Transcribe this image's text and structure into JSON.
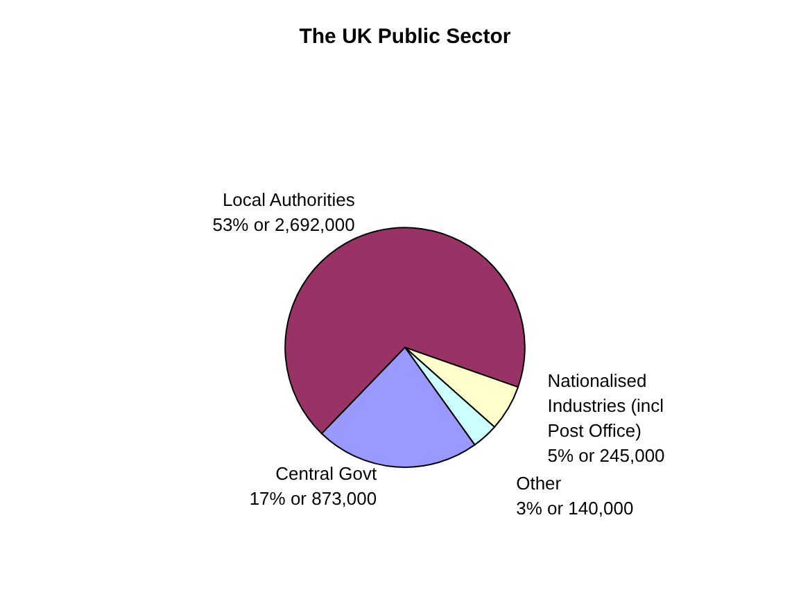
{
  "chart_data": {
    "type": "pie",
    "title": "The UK Public Sector",
    "categories": [
      "Local Authorities",
      "Nationalised Industries (incl Post Office)",
      "Other",
      "Central Govt"
    ],
    "values": [
      2692000,
      245000,
      140000,
      873000
    ],
    "value_labels": [
      "53% or 2,692,000",
      "5% or 245,000",
      "3% or 140,000",
      "17% or 873,000"
    ],
    "colors": [
      "#993366",
      "#ffffcc",
      "#ccffff",
      "#9999ff"
    ],
    "legend": false
  }
}
